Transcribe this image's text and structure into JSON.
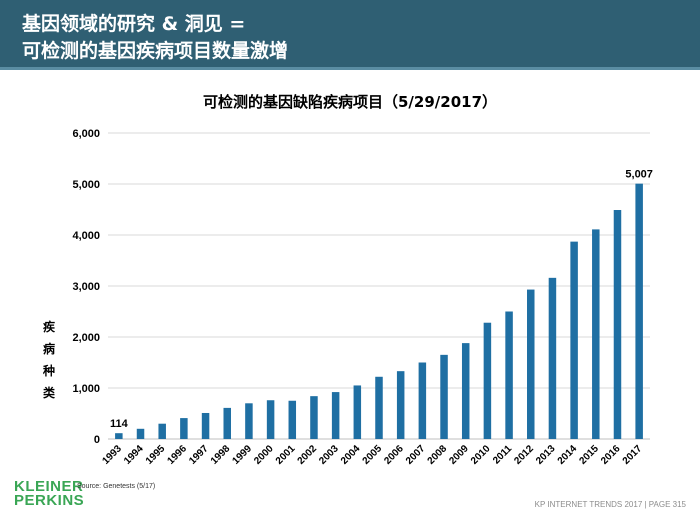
{
  "header": {
    "line1": "基因领域的研究 & 洞见 =",
    "line2": "可检测的基因疾病项目数量激增"
  },
  "colors": {
    "header_bg": "#2f5f73",
    "bar": "#1f6fa3",
    "logo": "#3aa655"
  },
  "chart_data": {
    "type": "bar",
    "title": "可检测的基因缺陷疾病项目（5/29/2017）",
    "xlabel": "",
    "ylabel": "疾病种类",
    "ylabel_chars": [
      "疾",
      "病",
      "种",
      "类"
    ],
    "ylim": [
      0,
      6000
    ],
    "yticks": [
      0,
      1000,
      2000,
      3000,
      4000,
      5000,
      6000
    ],
    "ytick_labels": [
      "0",
      "1,000",
      "2,000",
      "3,000",
      "4,000",
      "5,000",
      "6,000"
    ],
    "grid": true,
    "categories": [
      "1993",
      "1994",
      "1995",
      "1996",
      "1997",
      "1998",
      "1999",
      "2000",
      "2001",
      "2002",
      "2003",
      "2004",
      "2005",
      "2006",
      "2007",
      "2008",
      "2009",
      "2010",
      "2011",
      "2012",
      "2013",
      "2014",
      "2015",
      "2016",
      "2017"
    ],
    "values": [
      114,
      200,
      300,
      410,
      510,
      610,
      700,
      760,
      750,
      840,
      920,
      1050,
      1220,
      1330,
      1500,
      1650,
      1880,
      2280,
      2500,
      2930,
      3160,
      3870,
      4110,
      4490,
      5007
    ],
    "data_labels": [
      {
        "index": 0,
        "text": "114"
      },
      {
        "index": 24,
        "text": "5,007"
      }
    ]
  },
  "source": "Source: Genetests (5/17)",
  "logo": {
    "line1": "KLEINER",
    "line2": "PERKINS"
  },
  "footer": "KP INTERNET TRENDS 2017   |   PAGE 315"
}
